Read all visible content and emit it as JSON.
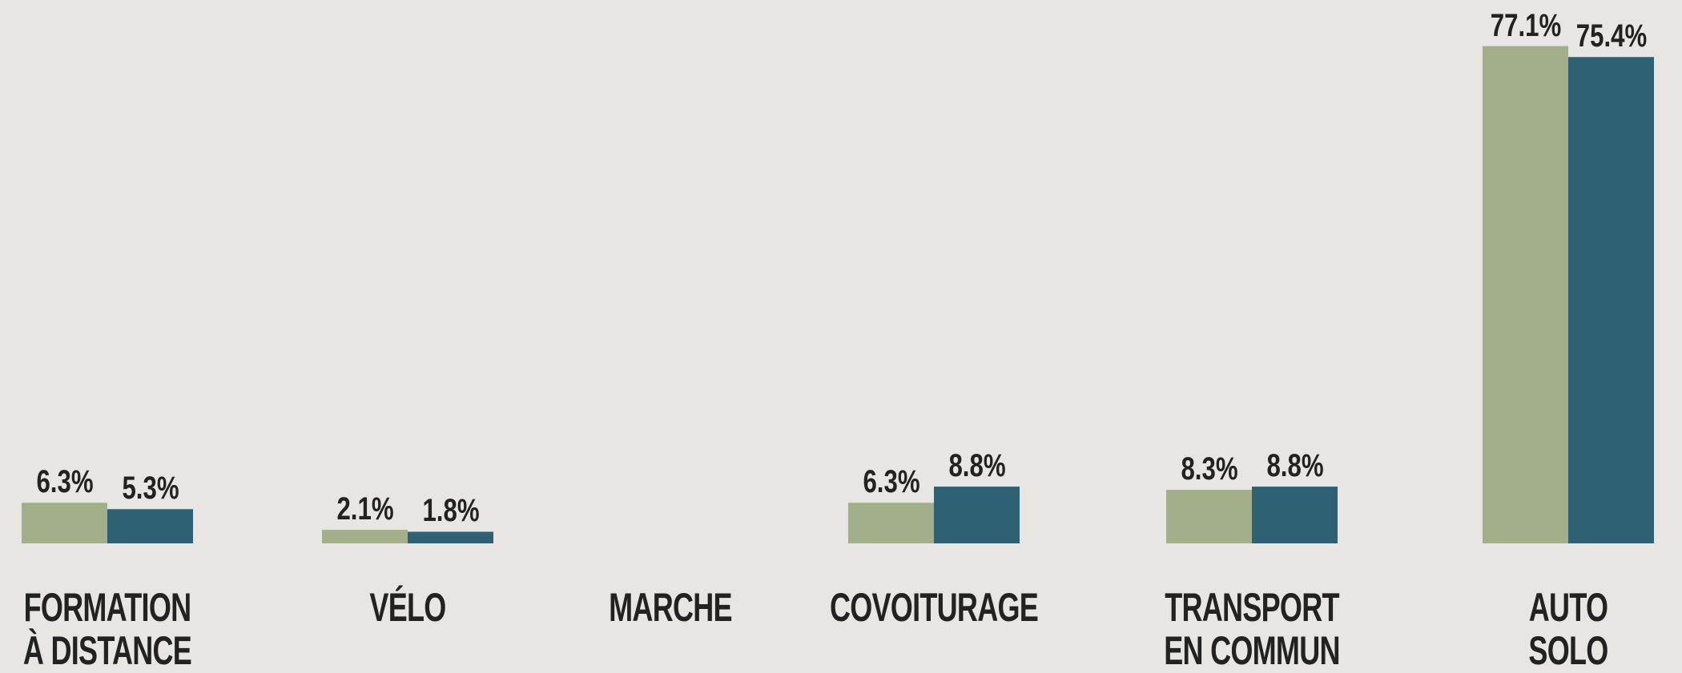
{
  "chart_data": {
    "type": "bar",
    "categories": [
      "FORMATION\nÀ DISTANCE",
      "VÉLO",
      "MARCHE",
      "COVOITURAGE",
      "TRANSPORT\nEN COMMUN",
      "AUTO SOLO"
    ],
    "series": [
      {
        "color": "#a2af8a",
        "values": [
          6.3,
          2.1,
          null,
          6.3,
          8.3,
          77.1
        ],
        "value_labels": [
          "6.3%",
          "2.1%",
          null,
          "6.3%",
          "8.3%",
          "77.1%"
        ]
      },
      {
        "color": "#2d6173",
        "values": [
          5.3,
          1.8,
          null,
          8.8,
          8.8,
          75.4
        ],
        "value_labels": [
          "5.3%",
          "1.8%",
          null,
          "8.8%",
          "8.8%",
          "75.4%"
        ]
      }
    ]
  }
}
